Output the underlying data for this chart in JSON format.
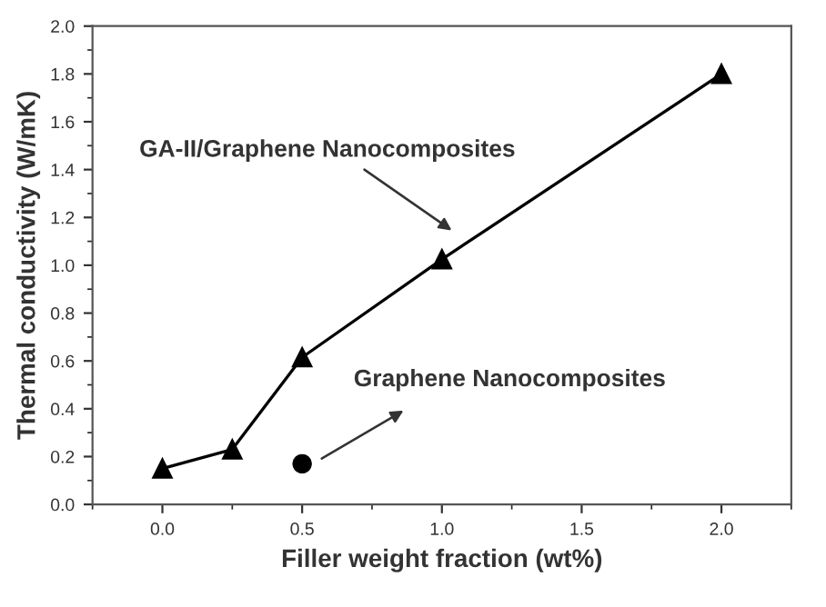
{
  "chart_data": {
    "type": "line",
    "xlabel": "Filler weight fraction (wt%)",
    "ylabel": "Thermal conductivity (W/mK)",
    "series": [
      {
        "color": "#000000",
        "marker": "triangle",
        "x": [
          0.0,
          0.25,
          0.5,
          1.0,
          2.0
        ],
        "values": [
          0.15,
          0.23,
          0.615,
          1.025,
          1.8
        ]
      },
      {
        "type": "scatter",
        "color": "#000000",
        "marker": "circle",
        "x": [
          0.5
        ],
        "values": [
          0.17
        ]
      }
    ],
    "xlim": [
      -0.25,
      2.25
    ],
    "xticks": [
      {
        "value": 0.0,
        "label": "0.0"
      },
      {
        "value": 0.5,
        "label": "0.5"
      },
      {
        "value": 1.0,
        "label": "1.0"
      },
      {
        "value": 1.5,
        "label": "1.5"
      },
      {
        "value": 2.0,
        "label": "2.0"
      }
    ],
    "ylim": [
      0.0,
      2.0
    ],
    "yticks": [
      {
        "value": 0.0,
        "label": "0.0"
      },
      {
        "value": 0.2,
        "label": "0.2"
      },
      {
        "value": 0.4,
        "label": "0.4"
      },
      {
        "value": 0.6,
        "label": "0.6"
      },
      {
        "value": 0.8,
        "label": "0.8"
      },
      {
        "value": 1.0,
        "label": "1.0"
      },
      {
        "value": 1.2,
        "label": "1.2"
      },
      {
        "value": 1.4,
        "label": "1.4"
      },
      {
        "value": 1.6,
        "label": "1.6"
      },
      {
        "value": 1.8,
        "label": "1.8"
      },
      {
        "value": 2.0,
        "label": "2.0"
      }
    ],
    "annotations": [
      "GA-II/Graphene Nanocomposites",
      "Graphene Nanocomposites"
    ],
    "grid": false,
    "legend": false
  }
}
